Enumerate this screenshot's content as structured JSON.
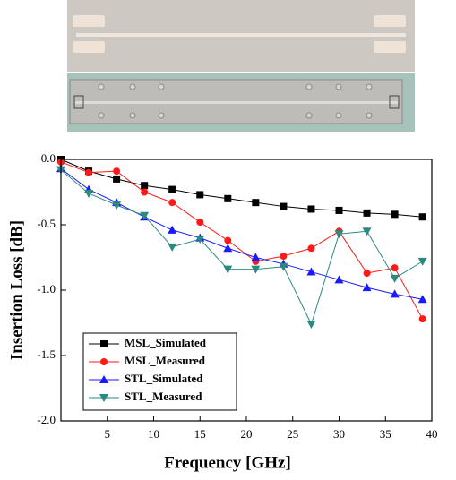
{
  "chart_data": {
    "type": "line",
    "x_label": "Frequency [GHz]",
    "y_label": "Insertion Loss [dB]",
    "x": [
      0,
      3,
      6,
      9,
      12,
      15,
      18,
      21,
      24,
      27,
      30,
      33,
      36,
      39
    ],
    "series": [
      {
        "name": "MSL_Simulated",
        "color": "#000000",
        "marker": "square",
        "values": [
          0,
          -0.09,
          -0.15,
          -0.2,
          -0.23,
          -0.27,
          -0.3,
          -0.33,
          -0.36,
          -0.38,
          -0.39,
          -0.41,
          -0.42,
          -0.44
        ]
      },
      {
        "name": "MSL_Measured",
        "color": "#ff1a1a",
        "marker": "circle",
        "values": [
          -0.02,
          -0.1,
          -0.09,
          -0.25,
          -0.33,
          -0.48,
          -0.62,
          -0.78,
          -0.74,
          -0.68,
          -0.55,
          -0.87,
          -0.83,
          -1.22
        ]
      },
      {
        "name": "STL_Simulated",
        "color": "#1a1aff",
        "marker": "triangle-up",
        "values": [
          -0.07,
          -0.23,
          -0.33,
          -0.44,
          -0.54,
          -0.6,
          -0.68,
          -0.75,
          -0.8,
          -0.86,
          -0.92,
          -0.98,
          -1.03,
          -1.07
        ]
      },
      {
        "name": "STL_Measured",
        "color": "#2a8a80",
        "marker": "triangle-down",
        "values": [
          -0.08,
          -0.26,
          -0.35,
          -0.43,
          -0.67,
          -0.61,
          -0.84,
          -0.84,
          -0.82,
          -1.26,
          -0.57,
          -0.55,
          -0.91,
          -0.78
        ]
      }
    ],
    "xlim": [
      0,
      40
    ],
    "xticks": [
      5,
      10,
      15,
      20,
      25,
      30,
      35,
      40
    ],
    "ylim": [
      -2,
      0
    ],
    "yticks": [
      {
        "value": 0,
        "label": "0.0"
      },
      -0.5,
      {
        "value": -1,
        "label": "-1.0"
      },
      -1.5,
      {
        "value": -2,
        "label": "-2.0"
      }
    ],
    "grid": false,
    "legend": "lower left"
  }
}
